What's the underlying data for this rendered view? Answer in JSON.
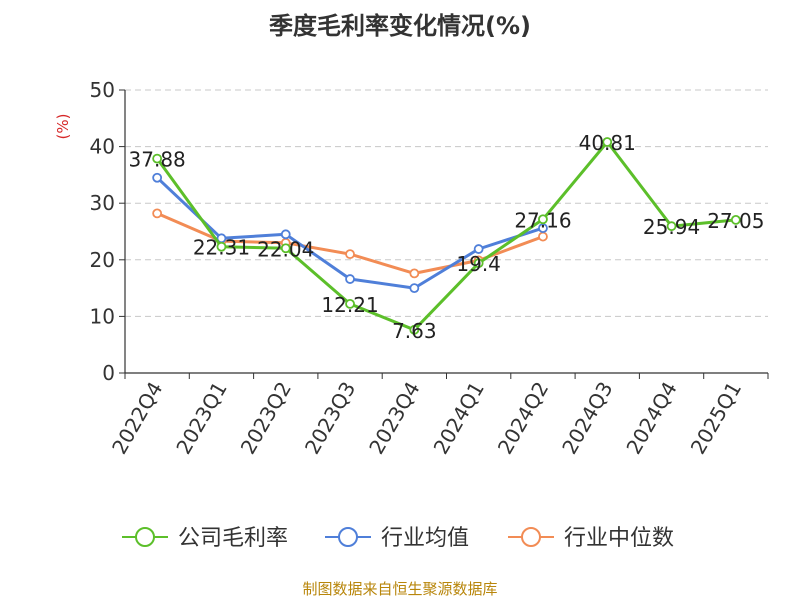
{
  "title": "季度毛利率变化情况(%)",
  "footer": "制图数据来自恒生聚源数据库",
  "colors": {
    "company": "#5cbf2a",
    "industry_avg": "#4f7fd9",
    "industry_median": "#f28c55",
    "axis": "#333333",
    "grid": "#c8c8c8",
    "unit": "#d62728"
  },
  "chart_data": {
    "type": "line",
    "title": "季度毛利率变化情况(%)",
    "ylabel": "(%)",
    "xlabel": "",
    "ylim": [
      0,
      50
    ],
    "yticks": [
      0,
      10,
      20,
      30,
      40,
      50
    ],
    "grid": "horizontal-dashed",
    "legend_position": "bottom",
    "categories": [
      "2022Q4",
      "2023Q1",
      "2023Q2",
      "2023Q3",
      "2023Q4",
      "2024Q1",
      "2024Q2",
      "2024Q3",
      "2024Q4",
      "2025Q1"
    ],
    "series": [
      {
        "key": "company",
        "name": "公司毛利率",
        "values": [
          37.88,
          22.31,
          22.04,
          12.21,
          7.63,
          19.4,
          27.16,
          40.81,
          25.94,
          27.05
        ],
        "labels": [
          "37.88",
          "22.31",
          "22.04",
          "12.21",
          "7.63",
          "19.4",
          "27.16",
          "40.81",
          "25.94",
          "27.05"
        ]
      },
      {
        "key": "industry_avg",
        "name": "行业均值",
        "values": [
          34.5,
          23.8,
          24.5,
          16.6,
          15.0,
          21.9,
          25.6,
          null,
          null,
          null
        ]
      },
      {
        "key": "industry_median",
        "name": "行业中位数",
        "values": [
          28.2,
          23.3,
          23.0,
          21.0,
          17.6,
          19.9,
          24.1,
          null,
          null,
          null
        ]
      }
    ]
  }
}
